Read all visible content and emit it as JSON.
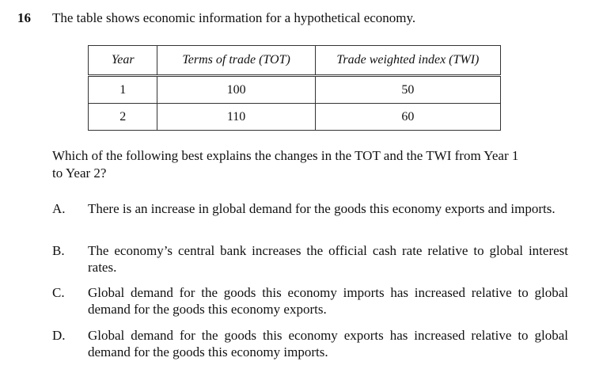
{
  "question": {
    "number": "16",
    "stem": "The table shows economic information for a hypothetical economy.",
    "prompt_line1": "Which of the following best explains the changes in the TOT and the TWI from Year 1",
    "prompt_line2": "to Year 2?"
  },
  "table": {
    "headers": [
      "Year",
      "Terms of trade (TOT)",
      "Trade weighted index (TWI)"
    ],
    "rows": [
      [
        "1",
        "100",
        "50"
      ],
      [
        "2",
        "110",
        "60"
      ]
    ]
  },
  "options": [
    {
      "letter": "A.",
      "text": "There is an increase in global demand for the goods this economy exports and imports."
    },
    {
      "letter": "B.",
      "text": "The economy’s central bank increases the official cash rate relative to global interest rates."
    },
    {
      "letter": "C.",
      "text": "Global demand for the goods this economy imports has increased relative to global demand for the goods this economy exports."
    },
    {
      "letter": "D.",
      "text": "Global demand for the goods this economy exports has increased relative to global demand for the goods this economy imports."
    }
  ]
}
